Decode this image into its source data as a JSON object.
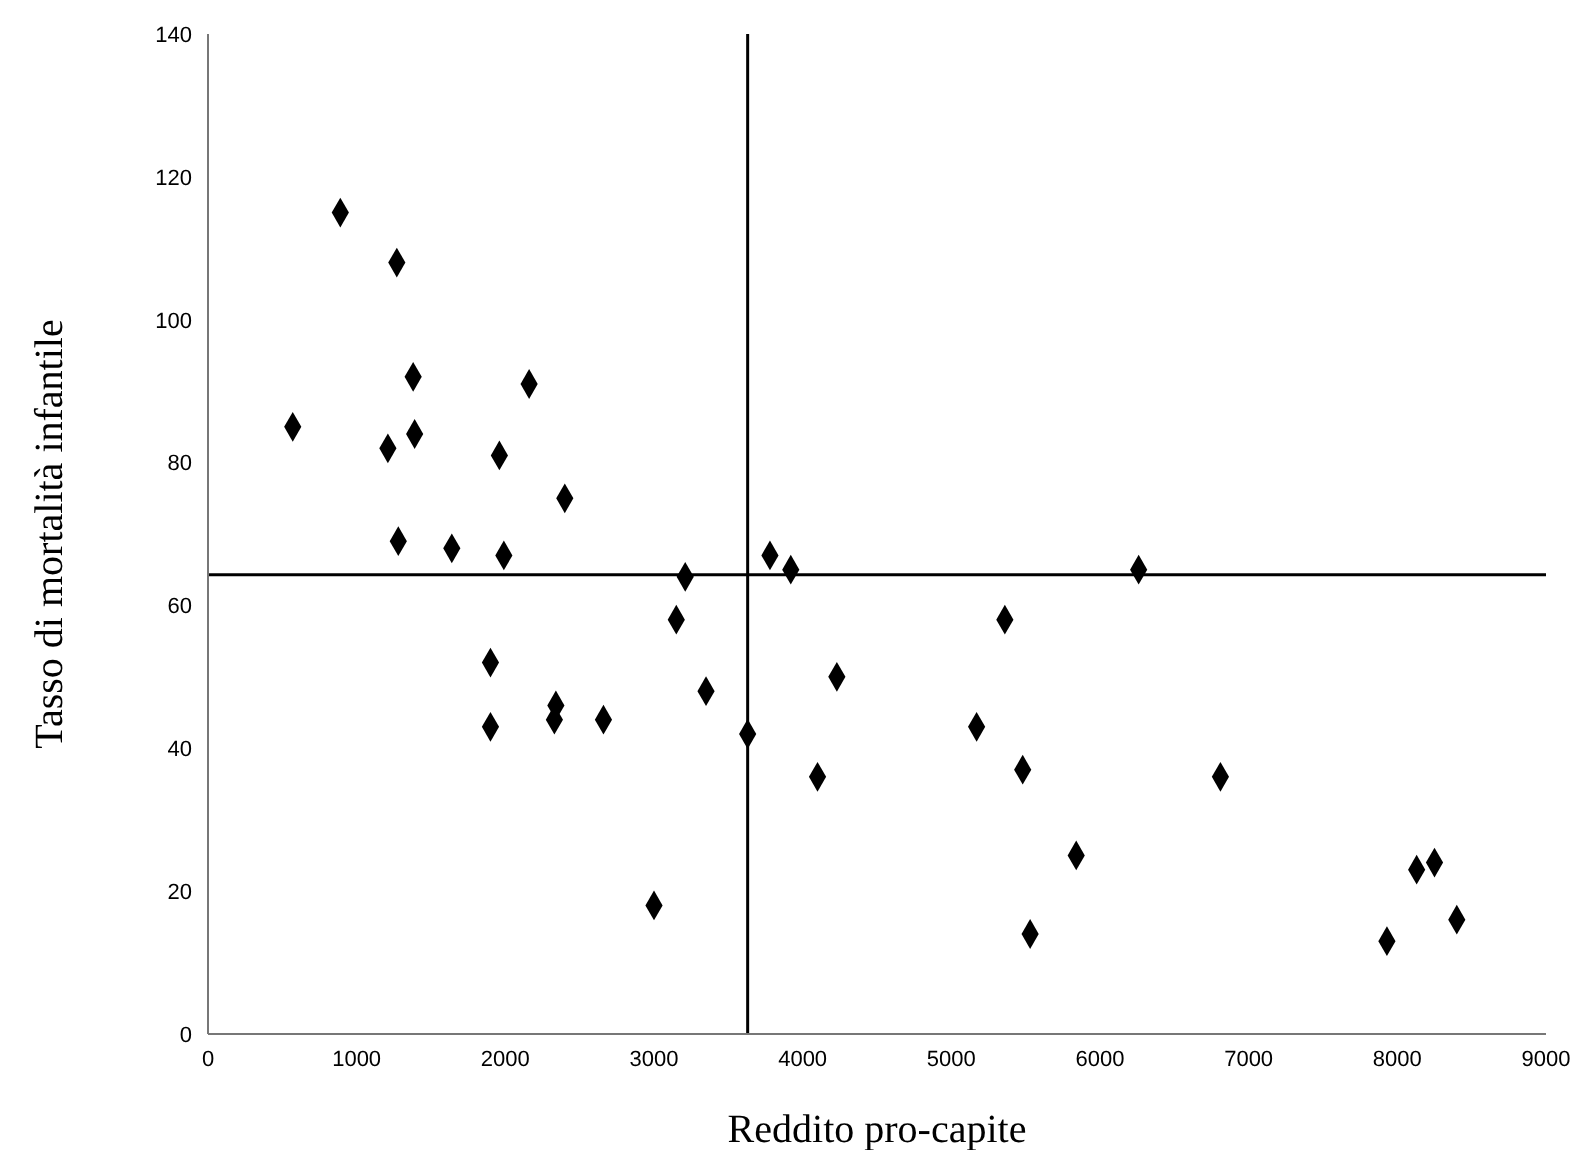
{
  "chart_data": {
    "type": "scatter",
    "xlabel": "Reddito pro-capite",
    "ylabel": "Tasso di mortalità infantile",
    "x": [
      890,
      1270,
      1380,
      2160,
      570,
      1390,
      1210,
      1960,
      2400,
      1280,
      1640,
      1990,
      3210,
      3150,
      1900,
      1900,
      2340,
      2330,
      2660,
      3000,
      3350,
      3630,
      3780,
      3920,
      4230,
      4100,
      5360,
      5170,
      5480,
      5840,
      5530,
      6260,
      6810,
      8130,
      8250,
      8400,
      7930
    ],
    "series": [
      {
        "color": "#000000",
        "values": [
          115,
          108,
          92,
          91,
          85,
          84,
          82,
          81,
          75,
          69,
          68,
          67,
          64,
          58,
          52,
          43,
          46,
          44,
          44,
          18,
          48,
          42,
          67,
          65,
          50,
          36,
          58,
          43,
          37,
          25,
          14,
          65,
          36,
          23,
          24,
          16,
          13
        ]
      }
    ],
    "xlim": [
      0,
      9000
    ],
    "xticks": [
      0,
      1000,
      2000,
      3000,
      4000,
      5000,
      6000,
      7000,
      8000,
      9000
    ],
    "ylim": [
      0,
      140
    ],
    "yticks": [
      0,
      20,
      40,
      60,
      80,
      100,
      120,
      140
    ],
    "marker": "diamond",
    "grid": false,
    "legend": false,
    "ref_lines": [
      {
        "axis": "x",
        "value": 3630,
        "color": "#000000"
      },
      {
        "axis": "y",
        "value": 64.3,
        "color": "#000000"
      }
    ]
  }
}
